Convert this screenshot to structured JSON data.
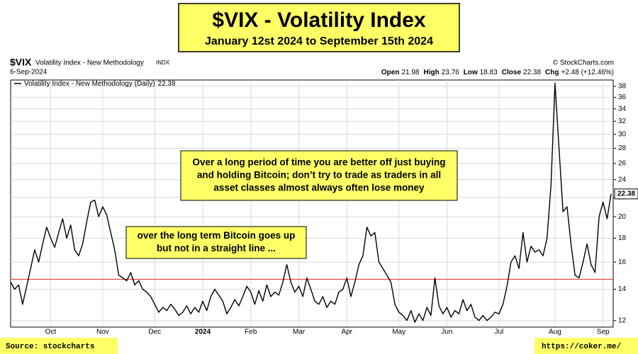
{
  "chart_data": {
    "type": "line",
    "title": "$VIX - Volatility Index",
    "subtitle": "January 12st 2024 to September 15th 2024",
    "symbol": "$VIX",
    "symbol_name": "Volatility Index - New Methodology",
    "exchange": "INDX",
    "credit": "© StockCharts.com",
    "date": "6-Sep-2024",
    "quote": [
      {
        "label": "Open",
        "value": 21.98
      },
      {
        "label": "High",
        "value": 23.76
      },
      {
        "label": "Low",
        "value": 18.83
      },
      {
        "label": "Close",
        "value": 22.38
      },
      {
        "label": "Chg",
        "value": "+2.48 (+12.46%)"
      }
    ],
    "log_scale": true,
    "grid": true,
    "ylim": [
      11.7,
      39.2
    ],
    "yticks": [
      12,
      14,
      16,
      18,
      20,
      22,
      24,
      26,
      28,
      30,
      32,
      34,
      36,
      38
    ],
    "reference_line": {
      "value": 14.7,
      "color": "#e8493f"
    },
    "categories": [
      null,
      null,
      null,
      null,
      null,
      null,
      null,
      null,
      null,
      null,
      "Oct",
      null,
      null,
      null,
      null,
      null,
      null,
      null,
      null,
      null,
      null,
      null,
      null,
      "Nov",
      null,
      null,
      null,
      null,
      null,
      null,
      null,
      null,
      null,
      null,
      null,
      null,
      "Dec",
      null,
      null,
      null,
      null,
      null,
      null,
      null,
      null,
      null,
      null,
      null,
      "2024",
      null,
      null,
      null,
      null,
      null,
      null,
      null,
      null,
      null,
      null,
      null,
      "Feb",
      null,
      null,
      null,
      null,
      null,
      null,
      null,
      null,
      null,
      null,
      null,
      "Mar",
      null,
      null,
      null,
      null,
      null,
      null,
      null,
      null,
      null,
      null,
      null,
      "Apr",
      null,
      null,
      null,
      null,
      null,
      null,
      null,
      null,
      null,
      null,
      null,
      null,
      "May",
      null,
      null,
      null,
      null,
      null,
      null,
      null,
      null,
      null,
      null,
      null,
      "Jun",
      null,
      null,
      null,
      null,
      null,
      null,
      null,
      null,
      null,
      null,
      null,
      null,
      "Jul",
      null,
      null,
      null,
      null,
      null,
      null,
      null,
      null,
      null,
      null,
      null,
      null,
      null,
      "Aug",
      null,
      null,
      null,
      null,
      null,
      null,
      null,
      null,
      null,
      null,
      null,
      "Sep",
      null,
      null
    ],
    "series": [
      {
        "name": "Volatility Index - New Methodology (Daily)",
        "color": "#000000",
        "values": [
          14.5,
          14.0,
          14.3,
          13.0,
          14.2,
          15.5,
          17.0,
          16.0,
          17.5,
          19.0,
          18.0,
          17.2,
          18.5,
          19.8,
          18.0,
          19.2,
          17.0,
          16.5,
          17.5,
          19.5,
          21.5,
          21.7,
          20.0,
          21.0,
          20.2,
          18.5,
          17.0,
          15.0,
          14.8,
          14.6,
          15.2,
          14.3,
          14.6,
          14.0,
          13.8,
          13.5,
          13.0,
          12.5,
          12.8,
          12.6,
          13.0,
          12.7,
          12.3,
          12.5,
          12.9,
          12.4,
          12.8,
          12.5,
          13.2,
          12.6,
          13.5,
          14.0,
          13.6,
          13.2,
          12.4,
          12.8,
          13.3,
          12.9,
          13.5,
          14.2,
          13.8,
          13.0,
          13.9,
          13.2,
          14.3,
          13.5,
          13.8,
          13.6,
          14.5,
          15.8,
          14.5,
          13.8,
          14.2,
          13.5,
          14.8,
          14.0,
          13.2,
          13.0,
          13.5,
          12.8,
          13.2,
          13.0,
          13.8,
          14.0,
          14.8,
          13.5,
          14.5,
          15.8,
          16.5,
          19.0,
          18.2,
          18.5,
          16.0,
          15.5,
          15.0,
          14.5,
          13.0,
          12.5,
          12.3,
          12.0,
          12.6,
          11.9,
          12.4,
          12.0,
          12.8,
          12.3,
          14.8,
          12.9,
          12.4,
          12.8,
          12.2,
          12.6,
          12.4,
          13.3,
          12.6,
          13.0,
          12.2,
          12.0,
          12.3,
          12.0,
          12.2,
          12.5,
          12.4,
          13.0,
          14.2,
          16.0,
          16.5,
          15.5,
          18.5,
          16.0,
          17.3,
          16.8,
          17.0,
          16.5,
          18.0,
          23.4,
          38.6,
          28.0,
          20.5,
          21.0,
          17.5,
          15.0,
          14.8,
          16.0,
          17.5,
          15.8,
          15.2,
          20.0,
          21.5,
          19.8,
          22.38
        ]
      }
    ],
    "annotations": [
      {
        "lines": [
          "Over a long period of time you are better off just buying",
          "and holding Bitcoin;  don’t try to trade as traders in all",
          "asset classes almost always often lose money"
        ]
      },
      {
        "lines": [
          "over the long term Bitcoin goes up",
          "but not in a straight line ..."
        ]
      }
    ],
    "source": "Source:  stockcharts",
    "url": "https://coker.me/"
  }
}
